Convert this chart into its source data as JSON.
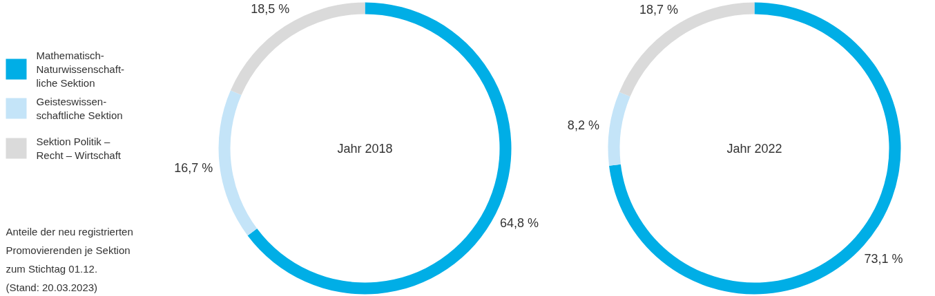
{
  "chart_data": [
    {
      "type": "donut",
      "title": "Jahr 2018",
      "categories": [
        "Mathematisch-\nNaturwissenschaft-\nliche Sektion",
        "Geisteswissen-\nschaftliche Sektion",
        "Sektion Politik –\nRecht – Wirtschaft"
      ],
      "values": [
        64.8,
        16.7,
        18.5
      ],
      "value_labels": [
        "64,8 %",
        "16,7 %",
        "18,5 %"
      ],
      "colors": [
        "#00aee6",
        "#c4e4f8",
        "#dadada"
      ],
      "legend": "left",
      "annotations": [
        "Anteile der neu registrierten\nPromovierenden je Sektion\nzum Stichtag 01.12.\n(Stand: 20.03.2023)"
      ]
    },
    {
      "type": "donut",
      "title": "Jahr 2022",
      "categories": [
        null,
        null,
        null
      ],
      "values": [
        73.1,
        8.2,
        18.7
      ],
      "value_labels": [
        "73,1 %",
        "8,2 %",
        "18,7 %"
      ],
      "colors": [
        "#00aee6",
        "#c4e4f8",
        "#dadada"
      ]
    }
  ]
}
